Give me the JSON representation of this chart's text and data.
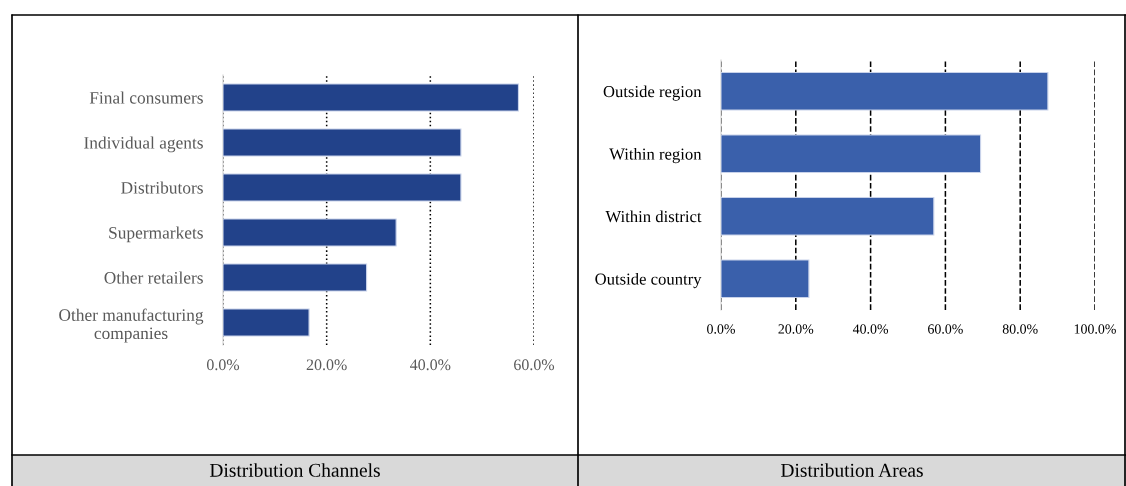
{
  "chart_data": [
    {
      "type": "bar",
      "orientation": "horizontal",
      "title": "Distribution Channels",
      "categories": [
        "Final consumers",
        "Individual agents",
        "Distributors",
        "Supermarkets",
        "Other retailers",
        "Other manufacturing\ncompanies"
      ],
      "values": [
        57.0,
        45.9,
        45.9,
        33.4,
        27.7,
        16.6
      ],
      "color": "#22428a",
      "xlim": [
        0,
        60
      ],
      "xticks": [
        {
          "value": 0,
          "label": "0.0%"
        },
        {
          "value": 20,
          "label": "20.0%"
        },
        {
          "value": 40,
          "label": "40.0%"
        },
        {
          "value": 60,
          "label": "60.0%"
        }
      ],
      "grid": "x"
    },
    {
      "type": "bar",
      "orientation": "horizontal",
      "title": "Distribution Areas",
      "categories": [
        "Outside region",
        "Within region",
        "Within district",
        "Outside country"
      ],
      "values": [
        87.4,
        69.4,
        56.9,
        23.5
      ],
      "color": "#3a60ab",
      "xlim": [
        0,
        100
      ],
      "xticks": [
        {
          "value": 0,
          "label": "0.0%"
        },
        {
          "value": 20,
          "label": "20.0%"
        },
        {
          "value": 40,
          "label": "40.0%"
        },
        {
          "value": 60,
          "label": "60.0%"
        },
        {
          "value": 80,
          "label": "80.0%"
        },
        {
          "value": 100,
          "label": "100.0%"
        }
      ],
      "grid": "x"
    }
  ]
}
